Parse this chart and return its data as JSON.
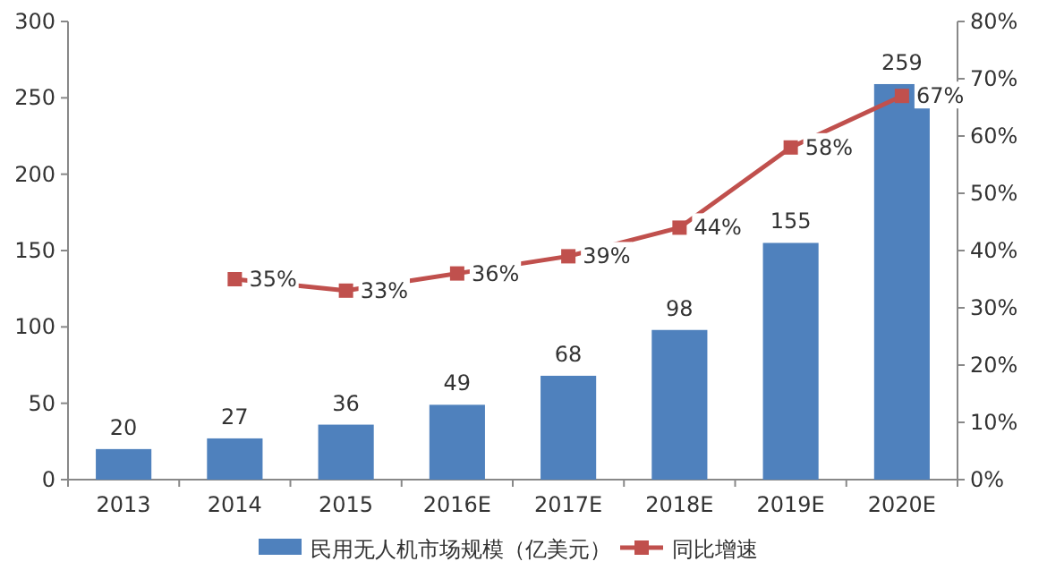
{
  "chart_data": {
    "type": "bar",
    "categories": [
      "2013",
      "2014",
      "2015",
      "2016E",
      "2017E",
      "2018E",
      "2019E",
      "2020E"
    ],
    "series": [
      {
        "name": "民用无人机市场规模（亿美元）",
        "color": "#4f81bd",
        "values": [
          20,
          27,
          36,
          49,
          68,
          98,
          155,
          259
        ]
      },
      {
        "name": "同比增速",
        "type": "line",
        "axis": "y2",
        "color": "#c0504d",
        "values": [
          null,
          35,
          33,
          36,
          39,
          44,
          58,
          67
        ],
        "value_labels": [
          null,
          "35%",
          "33%",
          "36%",
          "39%",
          "44%",
          "58%",
          "67%"
        ]
      }
    ],
    "ylim": [
      0,
      300
    ],
    "yticks": [
      0,
      50,
      100,
      150,
      200,
      250,
      300
    ],
    "y2lim": [
      0,
      80
    ],
    "y2ticks": [
      {
        "value": 0,
        "label": "0%"
      },
      {
        "value": 10,
        "label": "10%"
      },
      {
        "value": 20,
        "label": "20%"
      },
      {
        "value": 30,
        "label": "30%"
      },
      {
        "value": 40,
        "label": "40%"
      },
      {
        "value": 50,
        "label": "50%"
      },
      {
        "value": 60,
        "label": "60%"
      },
      {
        "value": 70,
        "label": "70%"
      },
      {
        "value": 80,
        "label": "80%"
      }
    ],
    "data_labels": true,
    "legend": "bottom",
    "marker": "square",
    "line_style": "solid",
    "grid": false
  }
}
